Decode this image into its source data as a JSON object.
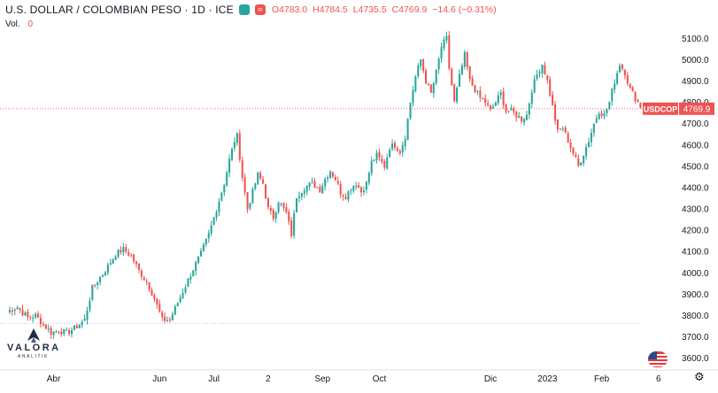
{
  "header": {
    "title": "U.S. DOLLAR / COLOMBIAN PESO · 1D · ICE",
    "status_icon": "market-dot-icon",
    "status_color": "#26a69a",
    "compare_icon": "approx-icon",
    "compare_color": "#ef5350",
    "open": "O4783.0",
    "high": "H4784.5",
    "low": "L4735.5",
    "close": "C4769.9",
    "change": "−14.6 (−0.31%)"
  },
  "volume": {
    "label": "Vol.",
    "value": "0"
  },
  "logo": {
    "name": "VALORA",
    "sub": "ANALITIK"
  },
  "price_tag": {
    "symbol": "USDCOP",
    "value": "4769.9",
    "color": "#ef5350"
  },
  "chart_data": {
    "type": "candlestick",
    "title": "U.S. DOLLAR / COLOMBIAN PESO · 1D · ICE",
    "y_ticks": [
      3600,
      3700,
      3800,
      3900,
      4000,
      4100,
      4200,
      4300,
      4400,
      4500,
      4600,
      4700,
      4800,
      4900,
      5000,
      5100
    ],
    "y_tick_labels": [
      "3600.0",
      "3700.0",
      "3800.0",
      "3900.0",
      "4000.0",
      "4100.0",
      "4200.0",
      "4300.0",
      "4400.0",
      "4500.0",
      "4600.0",
      "4700.0",
      "4800.0",
      "4900.0",
      "5000.0",
      "5100.0"
    ],
    "ylim": [
      3545,
      5155
    ],
    "x_range": [
      0,
      250
    ],
    "x_ticks": [
      {
        "label": "Abr",
        "x": 18
      },
      {
        "label": "Jun",
        "x": 59
      },
      {
        "label": "Jul",
        "x": 80
      },
      {
        "label": "2",
        "x": 101
      },
      {
        "label": "Sep",
        "x": 122
      },
      {
        "label": "Oct",
        "x": 144
      },
      {
        "label": "Dic",
        "x": 187
      },
      {
        "label": "2023",
        "x": 209
      },
      {
        "label": "Feb",
        "x": 230
      },
      {
        "label": "6",
        "x": 252
      }
    ],
    "last_price": 4769.9,
    "ref_price": 3764,
    "up_color": "#26a69a",
    "down_color": "#ef5350",
    "waypoints": [
      [
        0,
        3820
      ],
      [
        4,
        3840
      ],
      [
        8,
        3790
      ],
      [
        11,
        3800
      ],
      [
        14,
        3760
      ],
      [
        17,
        3720
      ],
      [
        20,
        3730
      ],
      [
        23,
        3720
      ],
      [
        26,
        3740
      ],
      [
        30,
        3780
      ],
      [
        33,
        3930
      ],
      [
        36,
        3980
      ],
      [
        39,
        4030
      ],
      [
        42,
        4090
      ],
      [
        45,
        4110
      ],
      [
        48,
        4080
      ],
      [
        51,
        4010
      ],
      [
        54,
        3960
      ],
      [
        57,
        3880
      ],
      [
        60,
        3780
      ],
      [
        63,
        3780
      ],
      [
        66,
        3860
      ],
      [
        69,
        3940
      ],
      [
        72,
        4020
      ],
      [
        75,
        4090
      ],
      [
        78,
        4180
      ],
      [
        81,
        4300
      ],
      [
        84,
        4420
      ],
      [
        86,
        4530
      ],
      [
        88,
        4620
      ],
      [
        89,
        4640
      ],
      [
        91,
        4450
      ],
      [
        93,
        4300
      ],
      [
        95,
        4380
      ],
      [
        97,
        4460
      ],
      [
        99,
        4420
      ],
      [
        101,
        4300
      ],
      [
        103,
        4260
      ],
      [
        105,
        4340
      ],
      [
        108,
        4280
      ],
      [
        110,
        4180
      ],
      [
        112,
        4360
      ],
      [
        115,
        4400
      ],
      [
        118,
        4420
      ],
      [
        121,
        4390
      ],
      [
        123,
        4440
      ],
      [
        125,
        4480
      ],
      [
        127,
        4440
      ],
      [
        129,
        4380
      ],
      [
        131,
        4360
      ],
      [
        133,
        4400
      ],
      [
        135,
        4420
      ],
      [
        137,
        4380
      ],
      [
        139,
        4420
      ],
      [
        141,
        4520
      ],
      [
        143,
        4550
      ],
      [
        146,
        4500
      ],
      [
        148,
        4590
      ],
      [
        150,
        4600
      ],
      [
        152,
        4570
      ],
      [
        154,
        4640
      ],
      [
        156,
        4800
      ],
      [
        158,
        4920
      ],
      [
        160,
        5000
      ],
      [
        162,
        4900
      ],
      [
        164,
        4840
      ],
      [
        166,
        4940
      ],
      [
        168,
        5060
      ],
      [
        170,
        5100
      ],
      [
        171,
        4960
      ],
      [
        173,
        4800
      ],
      [
        175,
        4920
      ],
      [
        177,
        5020
      ],
      [
        179,
        4900
      ],
      [
        181,
        4860
      ],
      [
        183,
        4820
      ],
      [
        185,
        4800
      ],
      [
        187,
        4760
      ],
      [
        189,
        4800
      ],
      [
        191,
        4840
      ],
      [
        193,
        4760
      ],
      [
        195,
        4760
      ],
      [
        197,
        4740
      ],
      [
        199,
        4720
      ],
      [
        201,
        4740
      ],
      [
        203,
        4860
      ],
      [
        205,
        4930
      ],
      [
        207,
        4980
      ],
      [
        209,
        4900
      ],
      [
        211,
        4780
      ],
      [
        213,
        4660
      ],
      [
        215,
        4680
      ],
      [
        217,
        4620
      ],
      [
        219,
        4560
      ],
      [
        221,
        4500
      ],
      [
        223,
        4560
      ],
      [
        225,
        4620
      ],
      [
        227,
        4700
      ],
      [
        229,
        4760
      ],
      [
        231,
        4740
      ],
      [
        233,
        4800
      ],
      [
        235,
        4900
      ],
      [
        237,
        4980
      ],
      [
        239,
        4940
      ],
      [
        241,
        4860
      ],
      [
        243,
        4820
      ],
      [
        245,
        4780
      ],
      [
        247,
        4770
      ]
    ]
  }
}
